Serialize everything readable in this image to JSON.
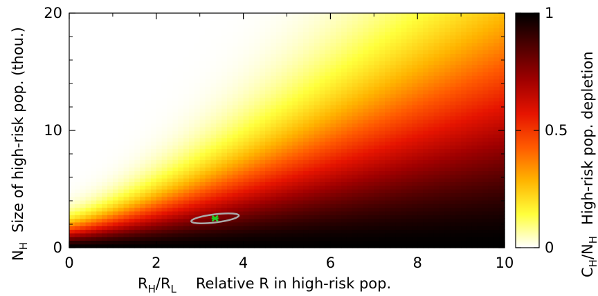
{
  "chart_data": {
    "type": "heatmap",
    "title": "",
    "x": {
      "var_label": "R",
      "var_sub_a": "H",
      "var_slash": "/R",
      "var_sub_b": "L",
      "description": "Relative R in high-risk pop.",
      "range": [
        0,
        10
      ],
      "ticks": [
        0,
        2,
        4,
        6,
        8,
        10
      ],
      "tick_labels": [
        "0",
        "2",
        "4",
        "6",
        "8",
        "10"
      ]
    },
    "y": {
      "var_label": "N",
      "var_sub": "H",
      "description": "Size of high-risk pop. (thou.)",
      "range": [
        0,
        20
      ],
      "ticks": [
        0,
        10,
        20
      ],
      "tick_labels": [
        "0",
        "10",
        "20"
      ]
    },
    "colorbar": {
      "var_label": "C",
      "var_sub_a": "H",
      "var_slash": "/N",
      "var_sub_b": "H",
      "description": "High-risk pop. depletion",
      "range": [
        0,
        1
      ],
      "ticks": [
        0,
        0.5,
        1
      ],
      "tick_labels": [
        "0",
        "0.5",
        "1"
      ],
      "colors": [
        "#ffffff",
        "#ffff3c",
        "#ffb400",
        "#ff5a00",
        "#e61400",
        "#a00000",
        "#500000",
        "#000000"
      ]
    },
    "surface": {
      "description": "Depletion increases with R_H/R_L and decreases with N_H; near 1 at low N_H, near 0 at R_H/R_L = 0",
      "cells_x": 80,
      "cells_y": 64
    },
    "estimate": {
      "point": {
        "x": 3.35,
        "y": 2.5
      },
      "ellipse": {
        "x_halfwidth": 0.55,
        "y_halfheight": 0.35
      },
      "point_color": "#22cc22",
      "ellipse_color": "#aaaaaa"
    }
  }
}
